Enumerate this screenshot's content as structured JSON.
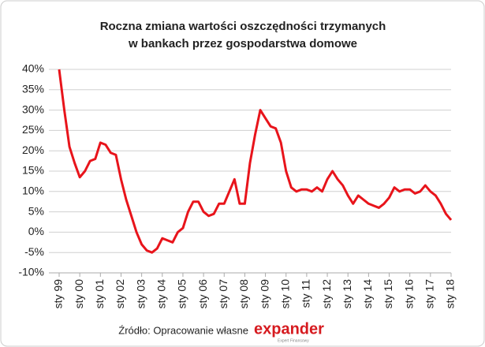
{
  "chart_data": {
    "type": "line",
    "title": [
      "Roczna zmiana wartości oszczędności trzymanych",
      "w bankach przez gospodarstwa domowe"
    ],
    "source": "Źródło: Opracowanie własne",
    "logo": "expander",
    "logo_tagline": "Expert Finansowy",
    "categories": [
      "sty 99",
      null,
      null,
      null,
      "sty 00",
      null,
      null,
      null,
      "sty 01",
      null,
      null,
      null,
      "sty 02",
      null,
      null,
      null,
      "sty 03",
      null,
      null,
      null,
      "sty 04",
      null,
      null,
      null,
      "sty 05",
      null,
      null,
      null,
      "sty 06",
      null,
      null,
      null,
      "sty 07",
      null,
      null,
      null,
      "sty 08",
      null,
      null,
      null,
      "sty 09",
      null,
      null,
      null,
      "sty 10",
      null,
      null,
      null,
      "sty 11",
      null,
      null,
      null,
      "sty 12",
      null,
      null,
      null,
      "sty 13",
      null,
      null,
      null,
      "sty 14",
      null,
      null,
      null,
      "sty 15",
      null,
      null,
      null,
      "sty 16",
      null,
      null,
      null,
      "sty 17",
      null,
      null,
      null,
      "sty 18"
    ],
    "values": [
      40,
      30,
      21,
      17,
      13.5,
      15,
      17.5,
      18,
      22,
      21.5,
      19.5,
      19,
      13,
      8,
      4,
      0,
      -3,
      -4.5,
      -5,
      -4,
      -1.5,
      -2,
      -2.5,
      0,
      1,
      5,
      7.5,
      7.5,
      5,
      4,
      4.5,
      7,
      7,
      10,
      13,
      7,
      7,
      17,
      24,
      30,
      28,
      26,
      25.5,
      22,
      15,
      11,
      10,
      10.5,
      10.5,
      10,
      11,
      10,
      13,
      15,
      13,
      11.5,
      9,
      7,
      9,
      8,
      7,
      6.5,
      6,
      7,
      8.5,
      11,
      10,
      10.5,
      10.5,
      9.5,
      10,
      11.5,
      10,
      9,
      7,
      4.5,
      3
    ],
    "color": "#e8141b",
    "ylim": [
      -10,
      40
    ],
    "yticks": [
      {
        "value": -10,
        "label": "-10%"
      },
      {
        "value": -5,
        "label": "-5%"
      },
      {
        "value": 0,
        "label": "0%"
      },
      {
        "value": 5,
        "label": "5%"
      },
      {
        "value": 10,
        "label": "10%"
      },
      {
        "value": 15,
        "label": "15%"
      },
      {
        "value": 20,
        "label": "20%"
      },
      {
        "value": 25,
        "label": "25%"
      },
      {
        "value": 30,
        "label": "30%"
      },
      {
        "value": 35,
        "label": "35%"
      },
      {
        "value": 40,
        "label": "40%"
      }
    ],
    "grid": true
  }
}
